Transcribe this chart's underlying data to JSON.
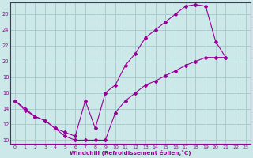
{
  "xlabel": "Windchill (Refroidissement éolien,°C)",
  "bg_color": "#cce8e8",
  "line_color": "#990099",
  "grid_color": "#aacccc",
  "xlim": [
    -0.5,
    23.5
  ],
  "ylim": [
    9.5,
    27.5
  ],
  "xticks": [
    0,
    1,
    2,
    3,
    4,
    5,
    6,
    7,
    8,
    9,
    10,
    11,
    12,
    13,
    14,
    15,
    16,
    17,
    18,
    19,
    20,
    21,
    22,
    23
  ],
  "yticks": [
    10,
    12,
    14,
    16,
    18,
    20,
    22,
    24,
    26
  ],
  "curve1_x": [
    0,
    1,
    2,
    3,
    4,
    5,
    6,
    7,
    8,
    9,
    10,
    11,
    12,
    13,
    14,
    15,
    16,
    17,
    18,
    19,
    20,
    21
  ],
  "curve1_y": [
    15.0,
    14.0,
    13.0,
    12.5,
    11.5,
    11.0,
    10.5,
    15.0,
    11.5,
    16.0,
    17.0,
    19.5,
    21.0,
    23.0,
    24.0,
    25.0,
    26.0,
    27.0,
    27.2,
    27.0,
    22.5,
    20.5
  ],
  "curve2_x": [
    0,
    1,
    2,
    3,
    4,
    5,
    6,
    7,
    8,
    9,
    10,
    11,
    12,
    13,
    14,
    15,
    16,
    17,
    18,
    19,
    20,
    21
  ],
  "curve2_y": [
    15.0,
    13.8,
    13.0,
    12.5,
    11.5,
    10.5,
    10.0,
    10.0,
    10.0,
    10.0,
    13.5,
    15.0,
    16.0,
    17.0,
    17.5,
    18.2,
    18.8,
    19.5,
    20.0,
    20.5,
    20.5,
    20.5
  ]
}
